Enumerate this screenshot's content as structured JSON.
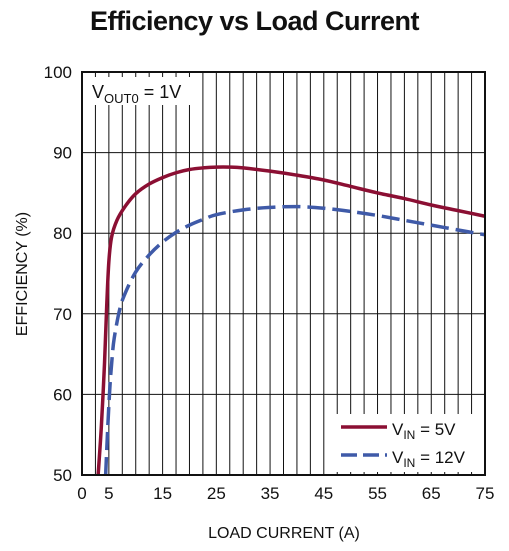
{
  "chart_data": {
    "type": "line",
    "title": "Efficiency vs Load Current",
    "xlabel": "LOAD CURRENT (A)",
    "ylabel": "EFFICIENCY (%)",
    "xlim": [
      0,
      75
    ],
    "ylim": [
      50,
      100
    ],
    "x_tick_labels": [
      "0",
      "5",
      "15",
      "25",
      "35",
      "45",
      "55",
      "65",
      "75"
    ],
    "x_tick_values": [
      0,
      5,
      15,
      25,
      35,
      45,
      55,
      65,
      75
    ],
    "y_tick_labels": [
      "50",
      "60",
      "70",
      "80",
      "90",
      "100"
    ],
    "y_tick_values": [
      50,
      60,
      70,
      80,
      90,
      100
    ],
    "x_grid_step": 2.5,
    "y_grid_step": 10,
    "grid": true,
    "annotation": {
      "main": "V",
      "sub": "OUT0",
      "rest": " = 1V"
    },
    "legend_position": "bottom-right",
    "series": [
      {
        "legend_main": "V",
        "legend_sub": "IN",
        "legend_rest": " = 5V",
        "color": "#8b0f33",
        "style": "solid",
        "x": [
          3.0,
          3.6,
          4.2,
          4.6,
          5.0,
          5.5,
          6.5,
          8,
          10,
          12.5,
          15,
          17.5,
          20,
          22.5,
          25,
          27.5,
          30,
          35,
          40,
          45,
          50,
          55,
          60,
          65,
          70,
          75
        ],
        "y": [
          50,
          56,
          64,
          71,
          76.5,
          79.5,
          81.6,
          83.3,
          84.9,
          86.1,
          86.9,
          87.5,
          87.9,
          88.1,
          88.2,
          88.2,
          88.1,
          87.7,
          87.2,
          86.6,
          85.8,
          85.0,
          84.3,
          83.5,
          82.8,
          82.1
        ]
      },
      {
        "legend_main": "V",
        "legend_sub": "IN",
        "legend_rest": " = 12V",
        "color": "#3f5aa8",
        "style": "dashed",
        "x": [
          4.4,
          4.8,
          5.2,
          5.6,
          6.0,
          7,
          8,
          10,
          12.5,
          15,
          17.5,
          20,
          22.5,
          25,
          30,
          35,
          40,
          45,
          50,
          55,
          60,
          65,
          70,
          75
        ],
        "y": [
          50,
          56,
          61,
          64.5,
          67,
          70.5,
          72.5,
          75.2,
          77.3,
          78.9,
          80.1,
          81.0,
          81.7,
          82.3,
          82.9,
          83.2,
          83.3,
          83.1,
          82.7,
          82.2,
          81.6,
          81.0,
          80.4,
          79.8
        ]
      }
    ]
  }
}
